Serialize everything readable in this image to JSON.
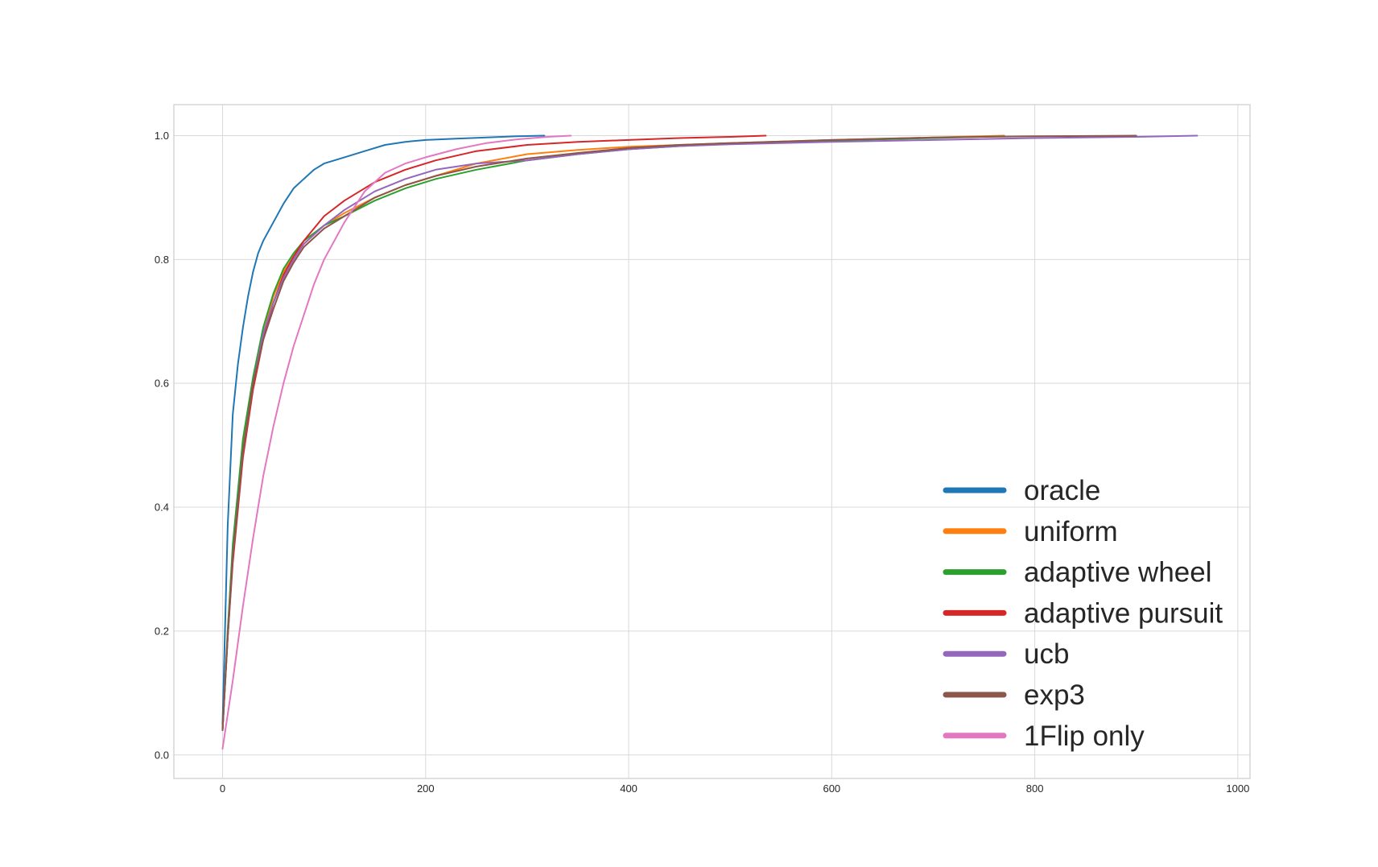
{
  "chart_data": {
    "type": "line",
    "title": "",
    "xlabel": "",
    "ylabel": "",
    "xlim": [
      -48,
      1012
    ],
    "ylim": [
      -0.038,
      1.05
    ],
    "xticks": [
      0,
      200,
      400,
      600,
      800,
      1000
    ],
    "yticks": [
      0.0,
      0.2,
      0.4,
      0.6,
      0.8,
      1.0
    ],
    "xtick_labels": [
      "0",
      "200",
      "400",
      "600",
      "800",
      "1000"
    ],
    "ytick_labels": [
      "0.0",
      "0.2",
      "0.4",
      "0.6",
      "0.8",
      "1.0"
    ],
    "grid": true,
    "legend_position": "lower-right",
    "series": [
      {
        "name": "oracle",
        "color": "#1f77b4",
        "x": [
          0,
          5,
          10,
          15,
          20,
          25,
          30,
          35,
          40,
          50,
          60,
          70,
          80,
          90,
          100,
          120,
          140,
          160,
          180,
          200,
          230,
          260,
          290,
          317
        ],
        "y": [
          0.05,
          0.37,
          0.55,
          0.63,
          0.69,
          0.74,
          0.78,
          0.81,
          0.83,
          0.86,
          0.89,
          0.915,
          0.93,
          0.945,
          0.955,
          0.965,
          0.975,
          0.985,
          0.99,
          0.993,
          0.995,
          0.997,
          0.999,
          1.0
        ]
      },
      {
        "name": "uniform",
        "color": "#ff7f0e",
        "x": [
          0,
          5,
          10,
          20,
          30,
          40,
          50,
          60,
          70,
          80,
          100,
          120,
          150,
          180,
          210,
          250,
          300,
          350,
          400,
          450,
          500,
          600,
          700,
          770
        ],
        "y": [
          0.04,
          0.2,
          0.33,
          0.5,
          0.6,
          0.68,
          0.74,
          0.78,
          0.805,
          0.825,
          0.855,
          0.875,
          0.9,
          0.92,
          0.935,
          0.955,
          0.97,
          0.977,
          0.982,
          0.985,
          0.988,
          0.993,
          0.997,
          1.0
        ]
      },
      {
        "name": "adaptive wheel",
        "color": "#2ca02c",
        "x": [
          0,
          5,
          10,
          20,
          30,
          40,
          50,
          60,
          70,
          80,
          100,
          120,
          150,
          180,
          210,
          250,
          300,
          350,
          400,
          450,
          500,
          600,
          700,
          770
        ],
        "y": [
          0.04,
          0.2,
          0.34,
          0.51,
          0.61,
          0.69,
          0.745,
          0.785,
          0.81,
          0.83,
          0.855,
          0.87,
          0.895,
          0.915,
          0.93,
          0.945,
          0.96,
          0.97,
          0.978,
          0.983,
          0.987,
          0.992,
          0.996,
          0.999
        ]
      },
      {
        "name": "adaptive pursuit",
        "color": "#d62728",
        "x": [
          0,
          5,
          10,
          20,
          30,
          40,
          50,
          60,
          70,
          80,
          100,
          120,
          150,
          180,
          210,
          250,
          300,
          350,
          400,
          450,
          500,
          535
        ],
        "y": [
          0.04,
          0.19,
          0.31,
          0.48,
          0.59,
          0.67,
          0.73,
          0.775,
          0.805,
          0.83,
          0.87,
          0.895,
          0.925,
          0.945,
          0.96,
          0.975,
          0.985,
          0.99,
          0.993,
          0.996,
          0.998,
          1.0
        ]
      },
      {
        "name": "ucb",
        "color": "#9467bd",
        "x": [
          0,
          5,
          10,
          20,
          30,
          40,
          50,
          60,
          70,
          80,
          100,
          120,
          150,
          180,
          210,
          250,
          300,
          350,
          400,
          450,
          500,
          600,
          700,
          800,
          900,
          960
        ],
        "y": [
          0.04,
          0.19,
          0.32,
          0.49,
          0.6,
          0.68,
          0.73,
          0.77,
          0.8,
          0.825,
          0.855,
          0.88,
          0.91,
          0.93,
          0.945,
          0.955,
          0.96,
          0.97,
          0.978,
          0.983,
          0.986,
          0.99,
          0.993,
          0.996,
          0.998,
          1.0
        ]
      },
      {
        "name": "exp3",
        "color": "#8c564b",
        "x": [
          0,
          5,
          10,
          20,
          30,
          40,
          50,
          60,
          70,
          80,
          100,
          120,
          150,
          180,
          210,
          250,
          300,
          350,
          400,
          450,
          500,
          600,
          700,
          800,
          900
        ],
        "y": [
          0.04,
          0.19,
          0.32,
          0.49,
          0.6,
          0.67,
          0.72,
          0.765,
          0.795,
          0.82,
          0.85,
          0.87,
          0.9,
          0.92,
          0.935,
          0.95,
          0.963,
          0.972,
          0.98,
          0.985,
          0.988,
          0.993,
          0.997,
          0.999,
          1.0
        ]
      },
      {
        "name": "1Flip only",
        "color": "#e377c2",
        "x": [
          0,
          10,
          20,
          30,
          40,
          50,
          60,
          70,
          80,
          90,
          100,
          120,
          140,
          160,
          180,
          200,
          230,
          260,
          290,
          320,
          343
        ],
        "y": [
          0.01,
          0.12,
          0.24,
          0.35,
          0.45,
          0.53,
          0.6,
          0.66,
          0.71,
          0.76,
          0.8,
          0.86,
          0.91,
          0.94,
          0.955,
          0.965,
          0.978,
          0.988,
          0.994,
          0.998,
          1.0
        ]
      }
    ]
  }
}
